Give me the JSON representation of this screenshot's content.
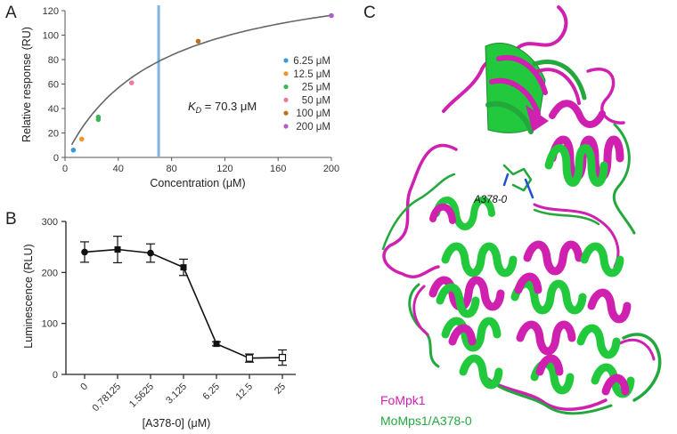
{
  "panels": {
    "a": "A",
    "b": "B",
    "c": "C"
  },
  "chart_data": [
    {
      "type": "scatter",
      "panel": "A",
      "xlabel": "Concentration (μM)",
      "ylabel": "Relative response (RU)",
      "xlim": [
        0,
        200
      ],
      "ylim": [
        0,
        120
      ],
      "xticks": [
        "0",
        "40",
        "80",
        "120",
        "160",
        "200"
      ],
      "yticks": [
        "0",
        "20",
        "40",
        "60",
        "80",
        "100",
        "120"
      ],
      "series": [
        {
          "name": "6.25 μM",
          "color": "#3a9ad9",
          "points": [
            [
              6.25,
              6
            ]
          ]
        },
        {
          "name": "12.5 μM",
          "color": "#f0962b",
          "points": [
            [
              12.5,
              15
            ]
          ]
        },
        {
          "name": "25 μM",
          "color": "#3fb55a",
          "points": [
            [
              25,
              33
            ],
            [
              25,
              31
            ]
          ]
        },
        {
          "name": "50 μM",
          "color": "#f07a9a",
          "points": [
            [
              50,
              61
            ]
          ]
        },
        {
          "name": "100 μM",
          "color": "#b8741a",
          "points": [
            [
              100,
              95
            ]
          ]
        },
        {
          "name": "200 μM",
          "color": "#b05ec8",
          "points": [
            [
              200,
              116
            ]
          ]
        }
      ],
      "fit": {
        "kd": 70.3,
        "rmax": 157,
        "color": "#666666"
      },
      "kd_line": {
        "x": 70.3,
        "color": "#7fb3e0"
      },
      "annotation": {
        "prefix": "K",
        "sub": "D",
        "suffix": " = 70.3 μM"
      },
      "legend_position": "right"
    },
    {
      "type": "line",
      "panel": "B",
      "xlabel": "[A378-0] (μM)",
      "ylabel": "Luminescence (RLU)",
      "categories": [
        "0",
        "0.78125",
        "1.5625",
        "3.125",
        "6.25",
        "12.5",
        "25"
      ],
      "values": [
        240,
        245,
        238,
        210,
        60,
        32,
        33
      ],
      "errors": [
        20,
        26,
        18,
        16,
        4,
        8,
        15
      ],
      "ylim": [
        0,
        300
      ],
      "yticks": [
        "0",
        "100",
        "200",
        "300"
      ]
    }
  ],
  "structure": {
    "ligand_label": "A378-0",
    "legend": [
      {
        "label": "FoMpk1",
        "color": "#d020b0"
      },
      {
        "label": "MoMps1/A378-0",
        "color": "#22a83c"
      }
    ]
  }
}
